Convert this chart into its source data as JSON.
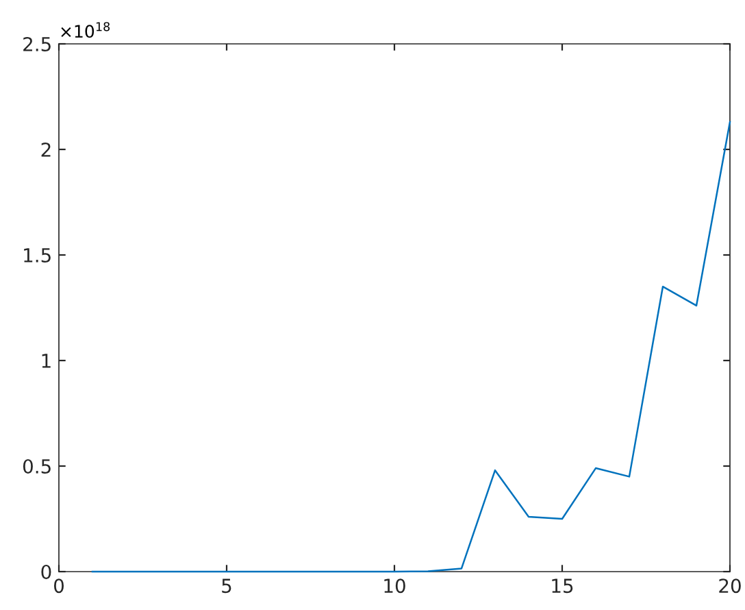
{
  "chart_data": {
    "type": "line",
    "x": [
      1,
      2,
      3,
      4,
      5,
      6,
      7,
      8,
      9,
      10,
      11,
      12,
      13,
      14,
      15,
      16,
      17,
      18,
      19,
      20
    ],
    "series": [
      {
        "color": "#0072bd",
        "values": [
          0,
          0,
          0,
          0,
          0,
          0,
          0,
          0,
          0,
          0,
          0.002,
          0.015,
          0.48,
          0.26,
          0.25,
          0.49,
          0.45,
          1.35,
          1.26,
          2.13
        ]
      }
    ],
    "xlim": [
      0,
      20
    ],
    "xticks": [
      0,
      5,
      10,
      15,
      20
    ],
    "ylim": [
      0,
      2.5
    ],
    "yticks": [
      0,
      0.5,
      1,
      1.5,
      2,
      2.5
    ],
    "annotations": [
      "×10$^{18}$"
    ],
    "grid": false,
    "legend": false,
    "marker": "none",
    "line_style": "solid"
  }
}
